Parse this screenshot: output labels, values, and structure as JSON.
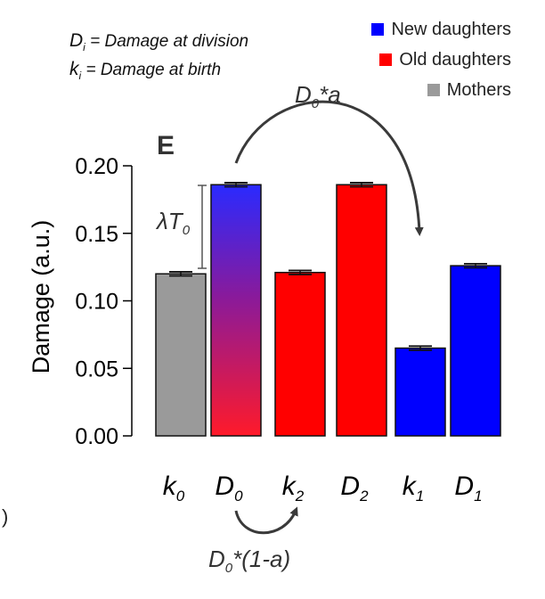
{
  "definitions": [
    {
      "symbol": "D",
      "subscript": "i",
      "text": " = Damage at division"
    },
    {
      "symbol": "k",
      "subscript": "i",
      "text": " = Damage at birth"
    }
  ],
  "legend": [
    {
      "label": "New daughters",
      "color": "#0000ff"
    },
    {
      "label": "Old daughters",
      "color": "#ff0000"
    },
    {
      "label": "Mothers",
      "color": "#9a9a9a"
    }
  ],
  "panel_label": "E",
  "annotations": {
    "top_arrow": {
      "base": "D",
      "sub": "0",
      "rest": "*a"
    },
    "bottom_arrow": {
      "base": "D",
      "sub": "0",
      "rest": "*(1-a)"
    },
    "bracket": {
      "base": "λT",
      "sub": "0"
    }
  },
  "stray_text": ")",
  "chart_data": {
    "type": "bar",
    "ylabel": "Damage (a.u.)",
    "ylim": [
      0,
      0.2
    ],
    "yticks": [
      "0.00",
      "0.05",
      "0.10",
      "0.15",
      "0.20"
    ],
    "categories": [
      {
        "base": "k",
        "sub": "0"
      },
      {
        "base": "D",
        "sub": "0"
      },
      {
        "base": "k",
        "sub": "2"
      },
      {
        "base": "D",
        "sub": "2"
      },
      {
        "base": "k",
        "sub": "1"
      },
      {
        "base": "D",
        "sub": "1"
      }
    ],
    "values": [
      0.12,
      0.186,
      0.121,
      0.186,
      0.065,
      0.126
    ],
    "errors": [
      0.0015,
      0.0015,
      0.0015,
      0.0015,
      0.0015,
      0.0015
    ],
    "fills": [
      "#9a9a9a",
      "gradient-blue-red",
      "#ff0000",
      "#ff0000",
      "#0000ff",
      "#0000ff"
    ],
    "grid": false
  }
}
